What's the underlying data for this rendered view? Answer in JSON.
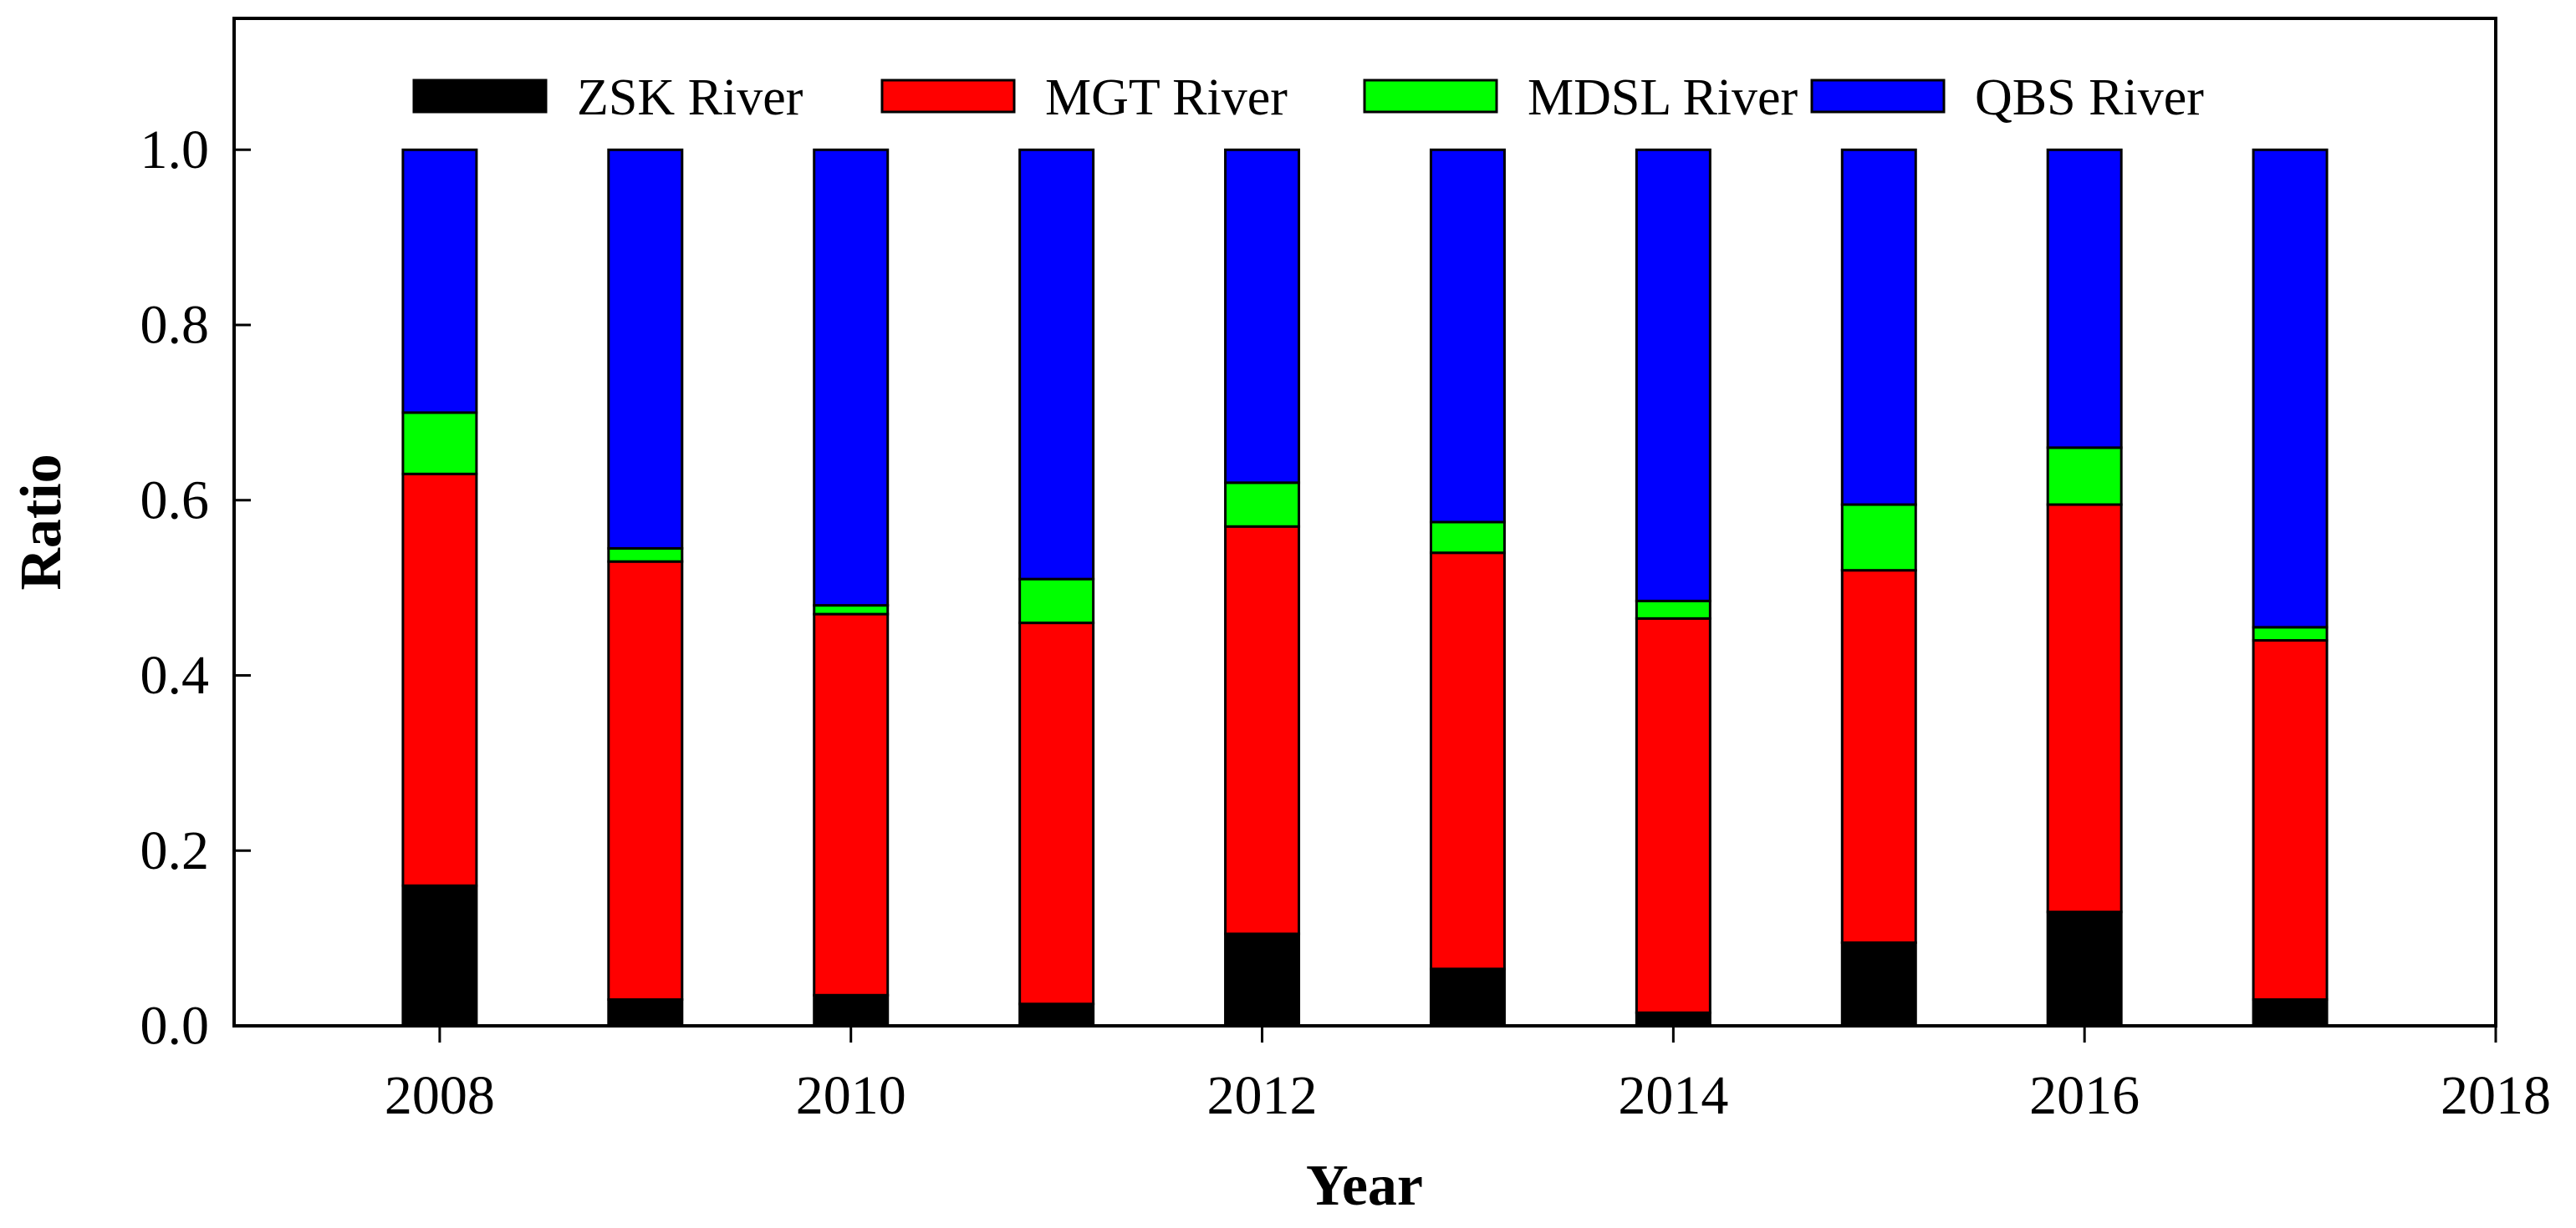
{
  "chart_data": {
    "type": "bar",
    "stacked": true,
    "title": "",
    "xlabel": "Year",
    "ylabel": "Ratio",
    "xlim": [
      2007,
      2018
    ],
    "ylim": [
      0,
      1.15
    ],
    "x": [
      2008,
      2009,
      2010,
      2011,
      2012,
      2013,
      2014,
      2015,
      2016,
      2017
    ],
    "x_ticks": [
      2008,
      2010,
      2012,
      2014,
      2016,
      2018
    ],
    "x_tick_labels": [
      "2008",
      "2010",
      "2012",
      "2014",
      "2016",
      "2018"
    ],
    "y_ticks": [
      0.0,
      0.2,
      0.4,
      0.6,
      0.8,
      1.0
    ],
    "y_tick_labels": [
      "0.0",
      "0.2",
      "0.4",
      "0.6",
      "0.8",
      "1.0"
    ],
    "grid": false,
    "legend_position": "top",
    "series": [
      {
        "name": "ZSK River",
        "color": "#000000",
        "values": [
          0.16,
          0.03,
          0.035,
          0.025,
          0.105,
          0.065,
          0.015,
          0.095,
          0.13,
          0.03
        ]
      },
      {
        "name": "MGT River",
        "color": "#ff0000",
        "values": [
          0.47,
          0.5,
          0.435,
          0.435,
          0.465,
          0.475,
          0.45,
          0.425,
          0.465,
          0.41
        ]
      },
      {
        "name": "MDSL River",
        "color": "#00ff00",
        "values": [
          0.07,
          0.015,
          0.01,
          0.05,
          0.05,
          0.035,
          0.02,
          0.075,
          0.065,
          0.015
        ]
      },
      {
        "name": "QBS River",
        "color": "#0000ff",
        "values": [
          0.3,
          0.455,
          0.52,
          0.49,
          0.38,
          0.425,
          0.515,
          0.405,
          0.34,
          0.545
        ]
      }
    ]
  }
}
